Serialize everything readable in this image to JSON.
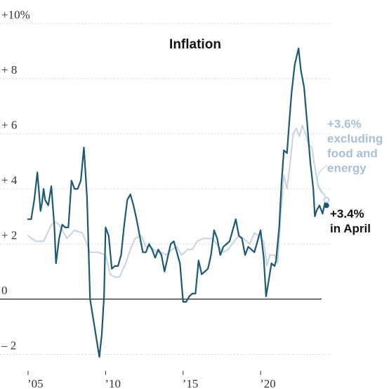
{
  "chart_data": {
    "type": "line",
    "title": "Inflation",
    "xlabel": "",
    "ylabel": "",
    "xlim": [
      2005.0,
      2024.75
    ],
    "ylim": [
      -2.6,
      10.6
    ],
    "grid": true,
    "y_ticks": [
      {
        "value": 10,
        "label": "+10%"
      },
      {
        "value": 8,
        "label": "+ 8"
      },
      {
        "value": 6,
        "label": "+ 6"
      },
      {
        "value": 4,
        "label": "+ 4"
      },
      {
        "value": 2,
        "label": "+ 2"
      },
      {
        "value": 0,
        "label": "0"
      },
      {
        "value": -2,
        "label": "– 2"
      }
    ],
    "x_ticks": [
      {
        "value": 2005,
        "label": "’05"
      },
      {
        "value": 2010,
        "label": "’10"
      },
      {
        "value": 2015,
        "label": "’15"
      },
      {
        "value": 2020,
        "label": "’20"
      }
    ],
    "series": [
      {
        "color": "#1b5a72",
        "x": [
          2005.0,
          2005.2,
          2005.4,
          2005.6,
          2005.7,
          2005.8,
          2005.9,
          2006.0,
          2006.1,
          2006.3,
          2006.5,
          2006.7,
          2006.8,
          2007.0,
          2007.2,
          2007.4,
          2007.6,
          2007.8,
          2008.0,
          2008.2,
          2008.4,
          2008.6,
          2008.8,
          2009.0,
          2009.2,
          2009.4,
          2009.6,
          2009.75,
          2009.9,
          2010.0,
          2010.2,
          2010.4,
          2010.6,
          2010.8,
          2011.0,
          2011.2,
          2011.4,
          2011.6,
          2011.8,
          2012.0,
          2012.2,
          2012.4,
          2012.6,
          2012.8,
          2013.0,
          2013.2,
          2013.4,
          2013.6,
          2013.8,
          2014.0,
          2014.2,
          2014.4,
          2014.6,
          2014.8,
          2015.0,
          2015.2,
          2015.4,
          2015.6,
          2015.8,
          2016.0,
          2016.2,
          2016.4,
          2016.6,
          2016.8,
          2017.0,
          2017.2,
          2017.4,
          2017.6,
          2017.8,
          2018.0,
          2018.2,
          2018.4,
          2018.6,
          2018.8,
          2019.0,
          2019.2,
          2019.4,
          2019.6,
          2019.8,
          2020.0,
          2020.2,
          2020.35,
          2020.5,
          2020.7,
          2020.9,
          2021.0,
          2021.2,
          2021.35,
          2021.5,
          2021.7,
          2021.9,
          2022.0,
          2022.2,
          2022.45,
          2022.6,
          2022.8,
          2023.0,
          2023.2,
          2023.4,
          2023.5,
          2023.6,
          2023.8,
          2024.0,
          2024.15,
          2024.25
        ],
        "values": [
          2.9,
          2.9,
          3.6,
          4.6,
          3.9,
          3.2,
          3.5,
          4.0,
          3.6,
          3.4,
          4.1,
          2.6,
          1.3,
          2.2,
          2.7,
          2.6,
          2.6,
          4.3,
          4.0,
          4.0,
          4.3,
          5.5,
          3.7,
          0.0,
          -0.7,
          -1.4,
          -2.1,
          -1.3,
          0.1,
          2.6,
          2.3,
          1.1,
          1.2,
          1.2,
          1.6,
          2.7,
          3.6,
          3.8,
          3.4,
          2.9,
          2.3,
          1.7,
          1.7,
          2.0,
          1.8,
          1.5,
          1.8,
          1.6,
          1.0,
          1.5,
          2.0,
          2.1,
          1.7,
          1.3,
          -0.1,
          -0.1,
          0.1,
          0.2,
          0.2,
          1.4,
          0.9,
          1.0,
          1.1,
          1.6,
          2.5,
          2.2,
          1.6,
          1.9,
          2.0,
          2.1,
          2.5,
          2.9,
          2.3,
          2.2,
          1.6,
          1.9,
          1.8,
          1.7,
          2.1,
          2.5,
          1.5,
          0.1,
          0.6,
          1.3,
          1.2,
          1.4,
          2.6,
          4.2,
          5.4,
          5.3,
          6.8,
          7.5,
          8.5,
          9.1,
          8.3,
          7.7,
          6.4,
          5.0,
          4.0,
          3.0,
          3.2,
          3.4,
          3.1,
          3.5,
          3.4
        ]
      },
      {
        "name": "+3.6% excluding food and energy",
        "color": "#c6d3e1",
        "x": [
          2005.0,
          2005.5,
          2006.0,
          2006.5,
          2006.8,
          2007.0,
          2007.5,
          2008.0,
          2008.5,
          2009.0,
          2009.5,
          2010.0,
          2010.3,
          2010.6,
          2010.9,
          2011.3,
          2011.6,
          2011.9,
          2012.3,
          2012.6,
          2012.9,
          2013.3,
          2013.6,
          2013.9,
          2014.3,
          2014.6,
          2014.9,
          2015.3,
          2015.6,
          2015.9,
          2016.3,
          2016.6,
          2016.9,
          2017.3,
          2017.6,
          2017.9,
          2018.3,
          2018.6,
          2018.9,
          2019.3,
          2019.6,
          2019.9,
          2020.2,
          2020.4,
          2020.6,
          2020.9,
          2021.1,
          2021.3,
          2021.5,
          2021.7,
          2021.9,
          2022.1,
          2022.3,
          2022.5,
          2022.7,
          2022.9,
          2023.1,
          2023.3,
          2023.5,
          2023.7,
          2023.9,
          2024.1,
          2024.25
        ],
        "values": [
          2.3,
          2.1,
          2.1,
          2.7,
          2.8,
          2.7,
          2.2,
          2.5,
          2.4,
          1.7,
          1.7,
          1.6,
          0.9,
          0.8,
          0.8,
          1.3,
          1.8,
          2.2,
          2.3,
          1.9,
          1.9,
          1.7,
          1.7,
          1.6,
          1.8,
          1.9,
          1.6,
          1.8,
          1.8,
          2.1,
          2.2,
          2.2,
          2.2,
          1.9,
          1.7,
          1.8,
          2.1,
          2.3,
          2.2,
          2.0,
          2.4,
          2.3,
          2.1,
          1.2,
          1.6,
          1.6,
          1.3,
          3.0,
          4.5,
          4.0,
          4.9,
          6.0,
          6.2,
          5.9,
          6.3,
          6.0,
          5.6,
          5.5,
          4.8,
          4.1,
          3.9,
          3.8,
          3.6
        ]
      }
    ],
    "annotations": {
      "core": [
        "+3.6%",
        "excluding",
        "food and",
        "energy"
      ],
      "cpi": [
        "+3.4%",
        "in April"
      ]
    }
  },
  "colors": {
    "cpi": "#1b5a72",
    "core": "#c6d3e1",
    "core_label": "#a9bfd7",
    "grid": "#cccccc",
    "zero_line": "#222222"
  }
}
